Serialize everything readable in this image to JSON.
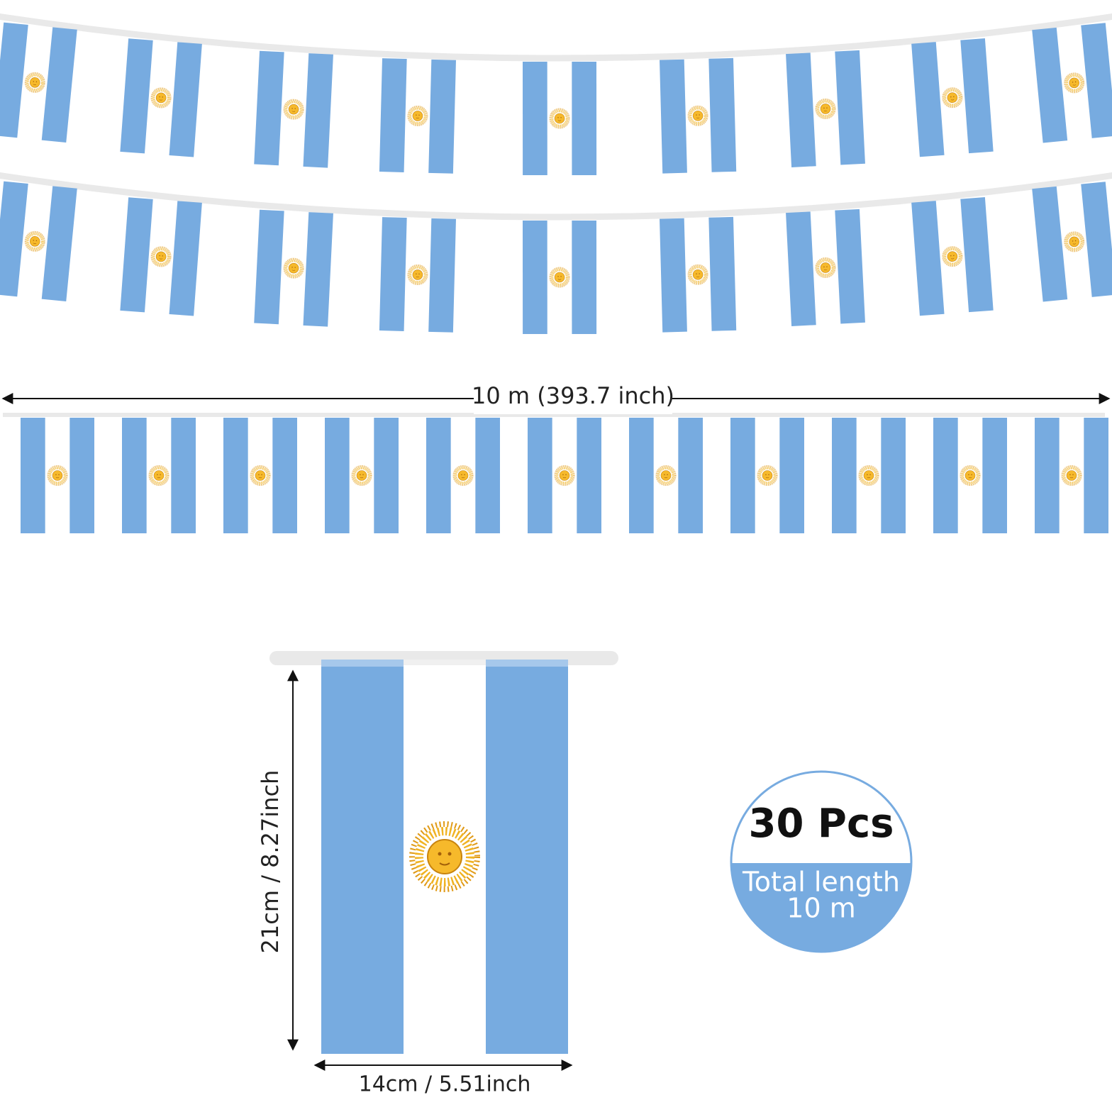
{
  "length_label": "10 m (393.7 inch)",
  "flag_height_label": "21cm / 8.27inch",
  "flag_width_label": "14cm / 5.51inch",
  "badge": {
    "count": "30 Pcs",
    "caption": "Total length",
    "length": "10 m"
  }
}
